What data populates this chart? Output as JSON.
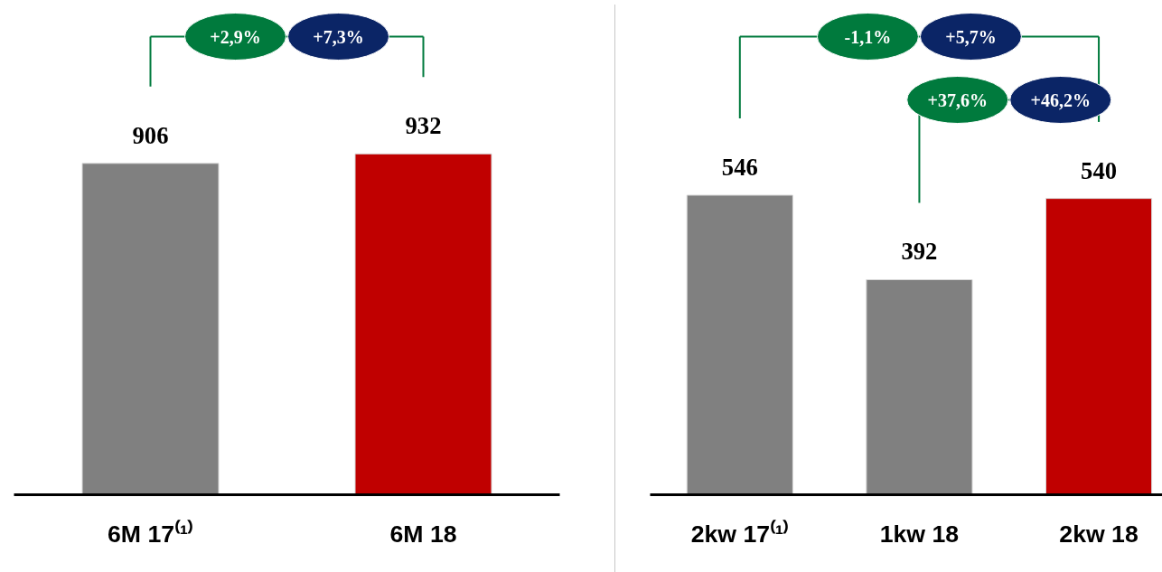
{
  "chart_data": [
    {
      "type": "bar",
      "categories": [
        "6M 17⁽¹⁾",
        "6M 18"
      ],
      "values": [
        906,
        932
      ],
      "colors": [
        "#808080",
        "#c00000"
      ],
      "data_labels": true,
      "annotations": [
        "+2,9%",
        "+7,3%"
      ]
    },
    {
      "type": "bar",
      "categories": [
        "2kw 17⁽¹⁾",
        "1kw 18",
        "2kw 18"
      ],
      "values": [
        546,
        392,
        540
      ],
      "colors": [
        "#808080",
        "#808080",
        "#c00000"
      ],
      "data_labels": true,
      "annotations": [
        "-1,1%",
        "+5,7%",
        "+37,6%",
        "+46,2%"
      ]
    }
  ]
}
